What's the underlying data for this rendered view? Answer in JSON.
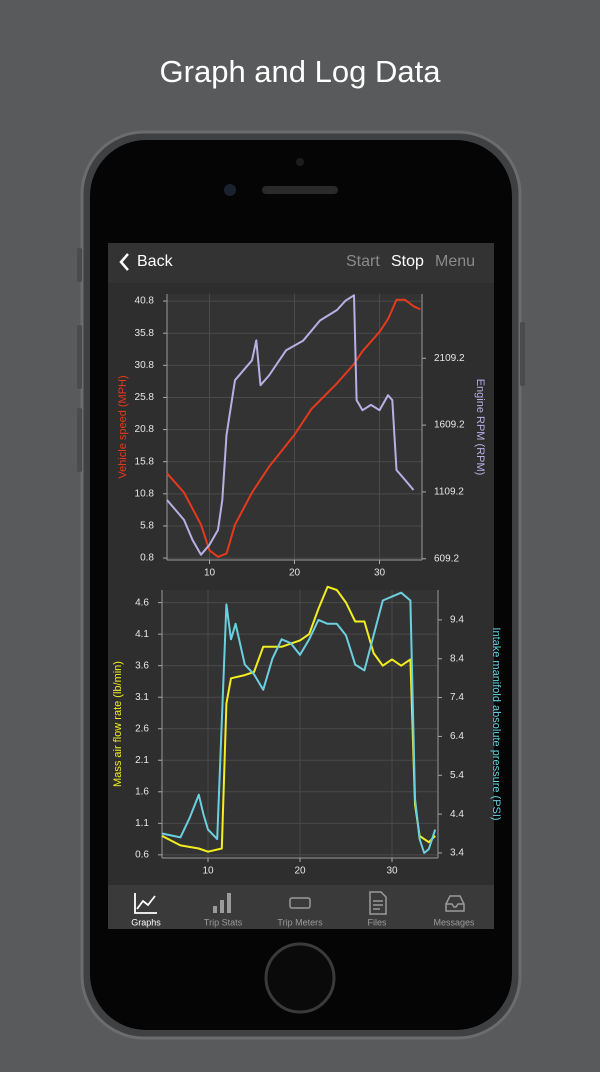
{
  "title": "Graph and Log Data",
  "nav": {
    "back": "Back",
    "start": "Start",
    "stop": "Stop",
    "menu": "Menu"
  },
  "tabs": [
    "Graphs",
    "Trip Stats",
    "Trip Meters",
    "Files",
    "Messages"
  ],
  "chart_data": [
    {
      "type": "line",
      "ylabel": "Vehicle speed (MPH)",
      "y2label": "Engine RPM (RPM)",
      "xlim": [
        5,
        35
      ],
      "xticks": [
        10,
        20,
        30
      ],
      "ylim": [
        0.5,
        41.9
      ],
      "yticks": [
        0.8,
        5.8,
        10.8,
        15.8,
        20.8,
        25.8,
        30.8,
        35.8,
        40.8
      ],
      "y2lim": [
        600,
        2590
      ],
      "y2ticks": [
        609.2,
        1109.2,
        1609.2,
        2109.2
      ],
      "grid": true,
      "series": [
        {
          "color": "#e5391d",
          "x": [
            5,
            7,
            9,
            10,
            11,
            12,
            13,
            15,
            17,
            20,
            22,
            25,
            27,
            28,
            30,
            31,
            32,
            33,
            34,
            34.8
          ],
          "values": [
            14,
            11,
            6,
            2,
            1,
            1.5,
            6,
            11,
            15,
            20,
            24,
            28,
            31,
            33,
            36,
            38,
            41,
            41,
            40,
            39.5
          ]
        },
        {
          "color": "#b8b0e4",
          "axis": "y2",
          "x": [
            5,
            6,
            7,
            8,
            9,
            10,
            11,
            11.5,
            12,
            13,
            15,
            15.5,
            16,
            17,
            19,
            21,
            23,
            25,
            26,
            27,
            27.3,
            28,
            29,
            30,
            31,
            31.5,
            32,
            33,
            34
          ],
          "values": [
            1049,
            975,
            900,
            750,
            640,
            714,
            825,
            1049,
            1535,
            1945,
            2094,
            2243,
            1908,
            1980,
            2168,
            2240,
            2392,
            2470,
            2540,
            2580,
            1796,
            1721,
            1760,
            1721,
            1833,
            1796,
            1273,
            1199,
            1124
          ]
        }
      ]
    },
    {
      "type": "line",
      "ylabel": "Mass air flow rate (lb/min)",
      "y2label": "Intake manifold absolute pressure (PSI)",
      "xlim": [
        5,
        35
      ],
      "xticks": [
        10,
        20,
        30
      ],
      "ylim": [
        0.55,
        4.8
      ],
      "yticks": [
        0.6,
        1.1,
        1.6,
        2.1,
        2.6,
        3.1,
        3.6,
        4.1,
        4.6
      ],
      "y2lim": [
        3.27,
        10.17
      ],
      "y2ticks": [
        3.4,
        4.4,
        5.4,
        6.4,
        7.4,
        8.4,
        9.4
      ],
      "grid": true,
      "series": [
        {
          "color": "#f2ee1f",
          "x": [
            5,
            7,
            9,
            10,
            11.5,
            12,
            12.5,
            14,
            15,
            16,
            18,
            20,
            21,
            22,
            23,
            24,
            25,
            26,
            27,
            28,
            29,
            30,
            31,
            32,
            32.5,
            33,
            34,
            34.7
          ],
          "values": [
            0.9,
            0.75,
            0.7,
            0.65,
            0.7,
            3.0,
            3.4,
            3.45,
            3.5,
            3.9,
            3.9,
            4.0,
            4.1,
            4.5,
            4.85,
            4.8,
            4.6,
            4.3,
            4.3,
            3.8,
            3.6,
            3.7,
            3.6,
            3.7,
            1.4,
            0.9,
            0.8,
            0.9
          ]
        },
        {
          "color": "#6ccfe0",
          "axis": "y2",
          "x": [
            5,
            7,
            8,
            9,
            9.5,
            10,
            11,
            12,
            12.5,
            13,
            14,
            15,
            16,
            17,
            18,
            19,
            20,
            21,
            22,
            23,
            24,
            25,
            26,
            27,
            28,
            29,
            30,
            31,
            32,
            32.5,
            33,
            33.5,
            34,
            34.7
          ],
          "values": [
            3.9,
            3.8,
            4.3,
            4.9,
            4.4,
            4.0,
            3.76,
            9.8,
            8.9,
            9.3,
            8.25,
            8.0,
            7.6,
            8.4,
            8.9,
            8.8,
            8.5,
            8.9,
            9.4,
            9.3,
            9.3,
            9.0,
            8.25,
            8.1,
            9.0,
            9.9,
            10.0,
            10.1,
            9.9,
            4.8,
            3.76,
            3.4,
            3.5,
            4.0
          ]
        }
      ]
    }
  ]
}
